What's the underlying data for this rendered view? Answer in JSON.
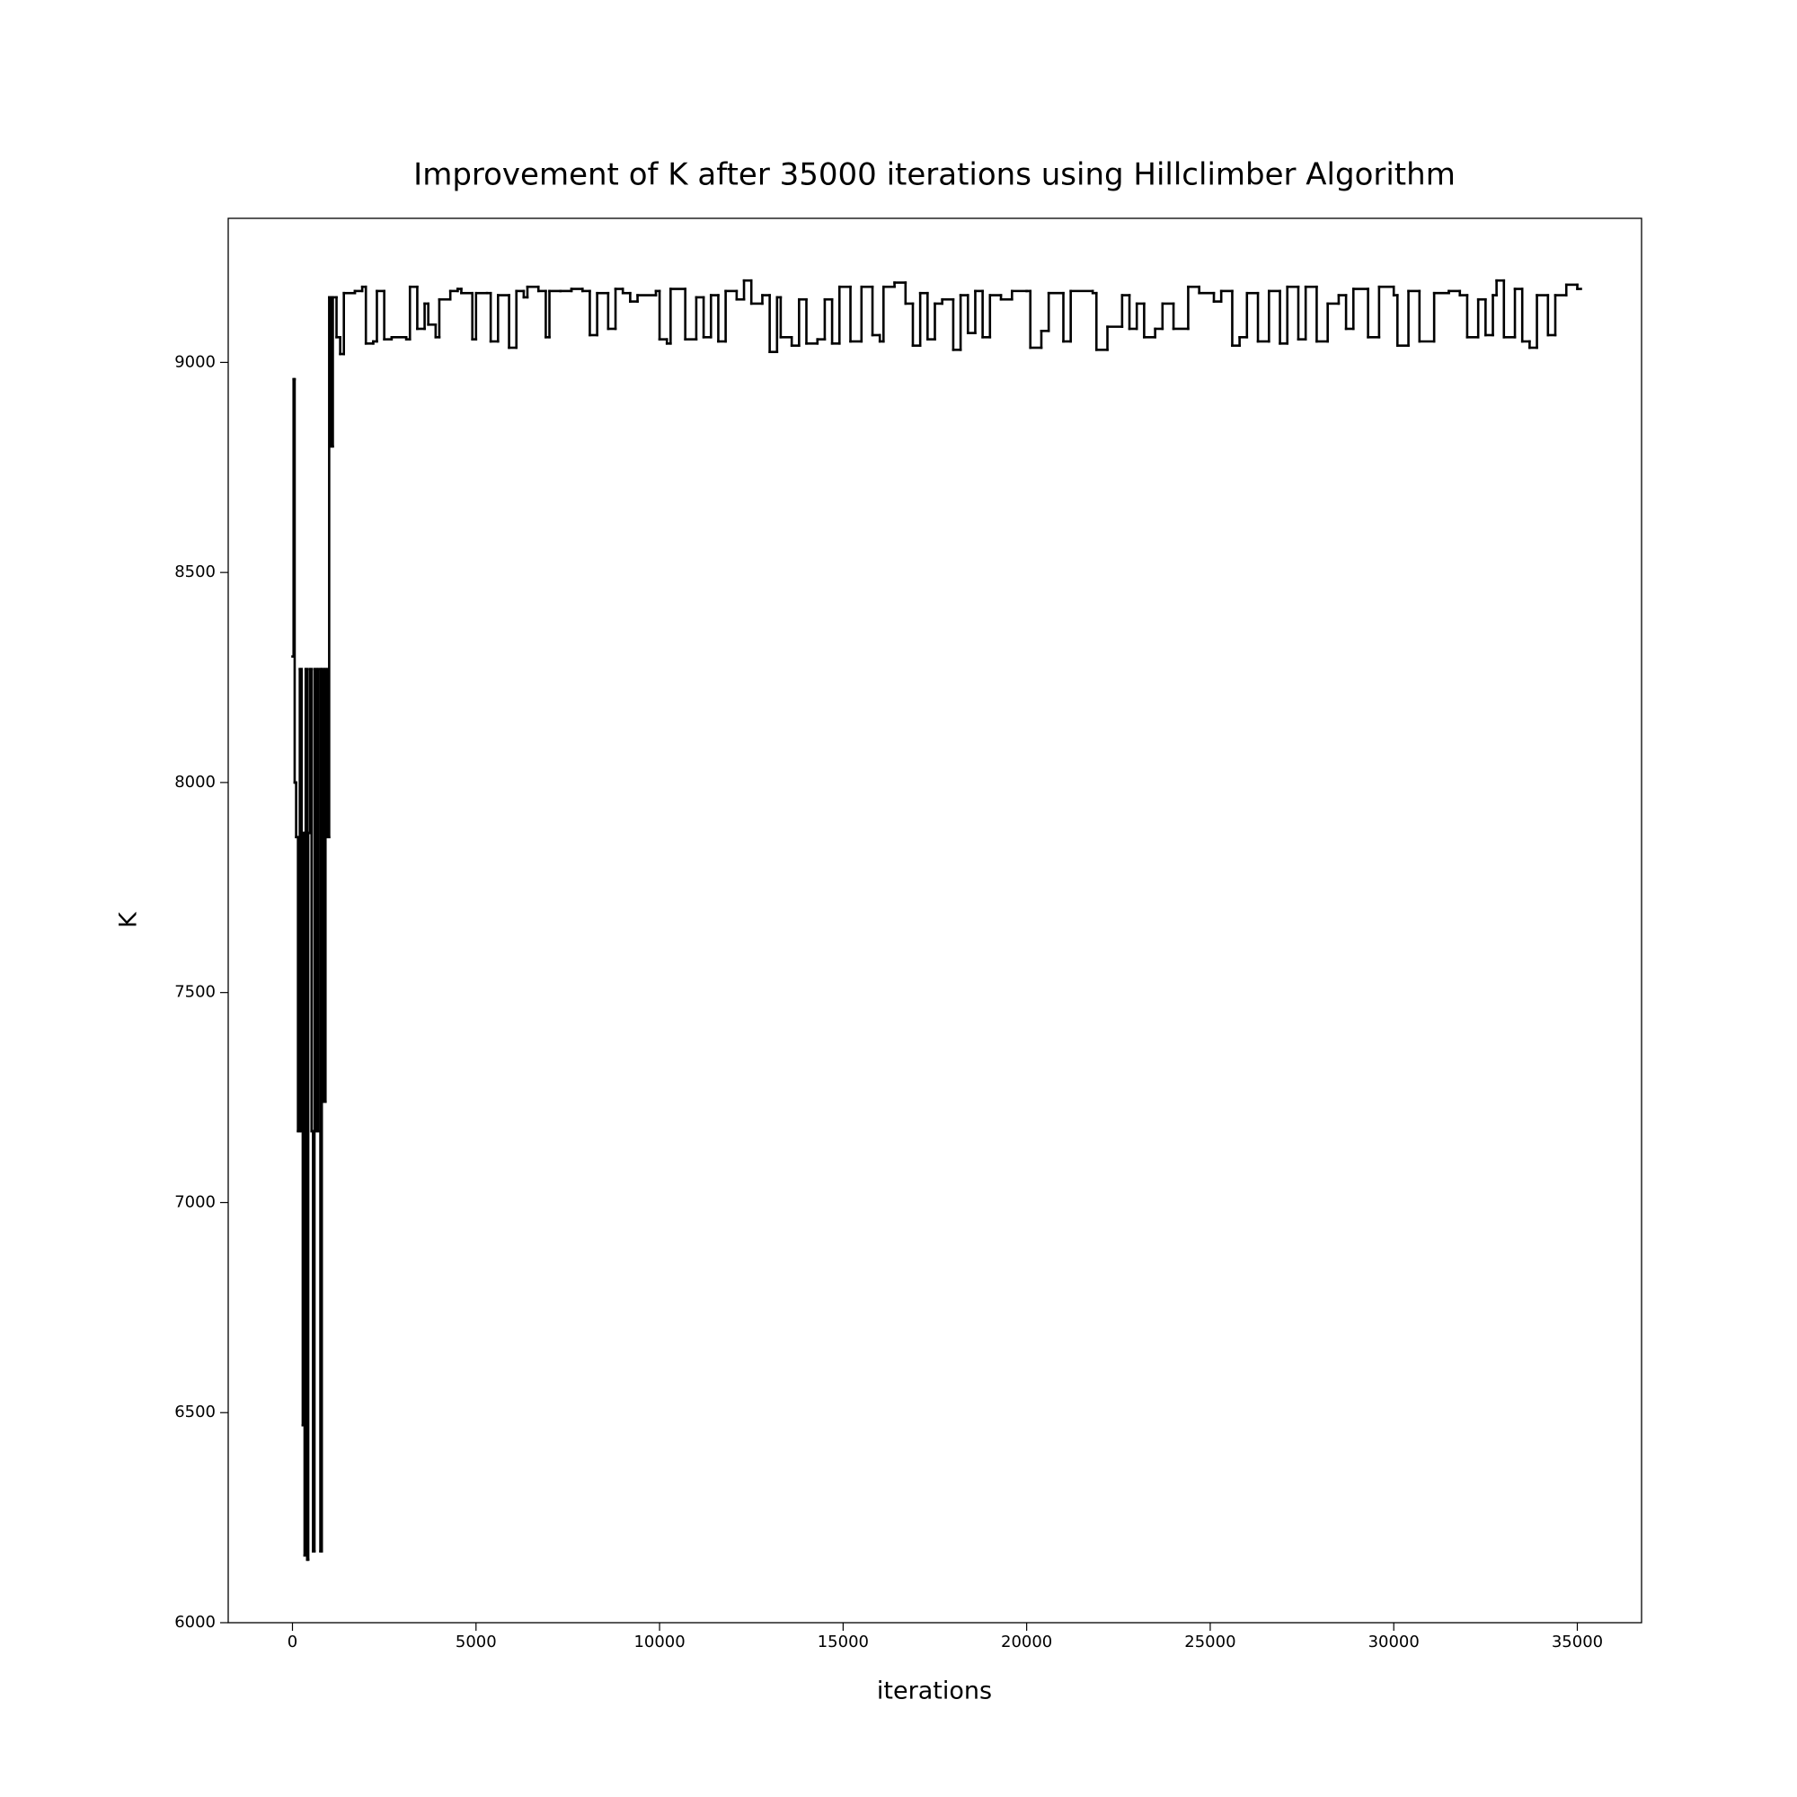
{
  "chart_data": {
    "type": "line",
    "step": true,
    "title": "Improvement of K after 35000 iterations using Hillclimber Algorithm",
    "xlabel": "iterations",
    "ylabel": "K",
    "color": "#000000",
    "xlim": [
      -1750,
      36750
    ],
    "xticks": [
      0,
      5000,
      10000,
      15000,
      20000,
      25000,
      30000,
      35000
    ],
    "ylim": [
      6000,
      9343
    ],
    "yticks": [
      6000,
      6500,
      7000,
      7500,
      8000,
      8500,
      9000
    ],
    "x": [
      0,
      30,
      60,
      100,
      150,
      200,
      250,
      280,
      300,
      330,
      360,
      400,
      430,
      470,
      520,
      560,
      600,
      650,
      700,
      760,
      800,
      850,
      900,
      950,
      1000,
      1060,
      1100,
      1200,
      1300,
      1400,
      1700,
      1900,
      2000,
      2200,
      2300,
      2500,
      2700,
      3100,
      3200,
      3400,
      3600,
      3700,
      3900,
      4000,
      4300,
      4500,
      4600,
      4900,
      5000,
      5300,
      5400,
      5600,
      5900,
      6100,
      6300,
      6400,
      6700,
      6900,
      7000,
      7300,
      7600,
      7900,
      8100,
      8300,
      8600,
      8800,
      9000,
      9200,
      9400,
      9900,
      10000,
      10200,
      10300,
      10700,
      11000,
      11200,
      11400,
      11600,
      11800,
      12100,
      12300,
      12500,
      12800,
      13000,
      13200,
      13300,
      13600,
      13800,
      14000,
      14300,
      14500,
      14700,
      14900,
      15200,
      15500,
      15800,
      16000,
      16100,
      16400,
      16700,
      16900,
      17100,
      17300,
      17500,
      17700,
      18000,
      18200,
      18400,
      18600,
      18800,
      19000,
      19300,
      19600,
      20000,
      20100,
      20400,
      20600,
      21000,
      21200,
      21800,
      21900,
      22200,
      22600,
      22800,
      23000,
      23200,
      23500,
      23700,
      24000,
      24400,
      24700,
      25100,
      25300,
      25600,
      25800,
      26000,
      26300,
      26600,
      26900,
      27100,
      27400,
      27600,
      27900,
      28200,
      28500,
      28700,
      28900,
      29300,
      29600,
      30000,
      30100,
      30400,
      30700,
      31100,
      31500,
      31800,
      32000,
      32300,
      32500,
      32700,
      32800,
      33000,
      33300,
      33500,
      33700,
      33900,
      34200,
      34400,
      34700,
      35000
    ],
    "values": [
      8300,
      8960,
      8000,
      7870,
      7170,
      8270,
      7170,
      6470,
      7880,
      6160,
      8270,
      6150,
      7880,
      8270,
      7170,
      6170,
      8270,
      7170,
      8270,
      6170,
      8270,
      7240,
      8270,
      7870,
      9155,
      8800,
      9155,
      9060,
      9020,
      9165,
      9170,
      9180,
      9045,
      9050,
      9170,
      9055,
      9060,
      9055,
      9180,
      9080,
      9140,
      9090,
      9060,
      9150,
      9170,
      9175,
      9165,
      9055,
      9165,
      9165,
      9050,
      9160,
      9035,
      9170,
      9155,
      9180,
      9170,
      9060,
      9170,
      9170,
      9175,
      9170,
      9065,
      9165,
      9080,
      9175,
      9165,
      9145,
      9160,
      9170,
      9055,
      9045,
      9175,
      9055,
      9155,
      9060,
      9160,
      9050,
      9170,
      9150,
      9195,
      9140,
      9160,
      9025,
      9155,
      9060,
      9040,
      9150,
      9045,
      9055,
      9150,
      9045,
      9180,
      9050,
      9180,
      9065,
      9050,
      9180,
      9190,
      9140,
      9040,
      9165,
      9055,
      9140,
      9150,
      9030,
      9160,
      9070,
      9170,
      9060,
      9160,
      9150,
      9170,
      9170,
      9035,
      9075,
      9165,
      9050,
      9170,
      9165,
      9030,
      9085,
      9160,
      9080,
      9140,
      9060,
      9080,
      9140,
      9080,
      9180,
      9165,
      9145,
      9170,
      9040,
      9060,
      9165,
      9050,
      9170,
      9045,
      9180,
      9055,
      9180,
      9050,
      9140,
      9160,
      9080,
      9175,
      9060,
      9180,
      9160,
      9040,
      9170,
      9050,
      9165,
      9170,
      9160,
      9060,
      9150,
      9065,
      9160,
      9195,
      9060,
      9175,
      9050,
      9035,
      9160,
      9065,
      9160,
      9185,
      9175
    ]
  }
}
